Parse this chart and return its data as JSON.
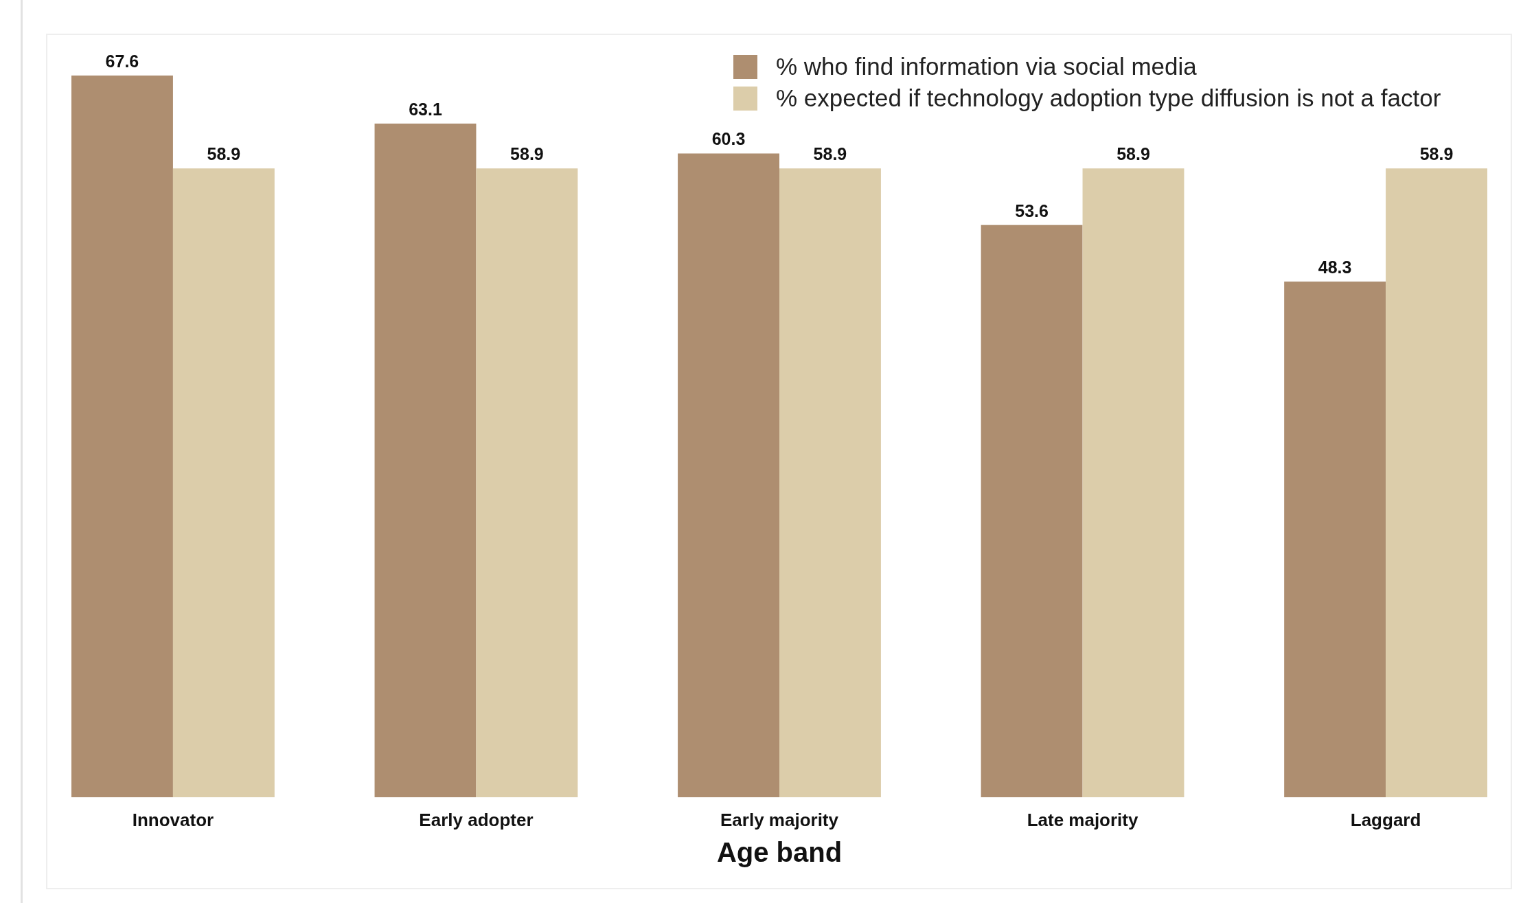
{
  "chart_data": {
    "type": "bar",
    "xlabel": "Age band",
    "categories": [
      "Innovator",
      "Early adopter",
      "Early majority",
      "Late majority",
      "Laggard"
    ],
    "series": [
      {
        "name": "% who find information via social media",
        "color": "#ae8e70",
        "values": [
          67.6,
          63.1,
          60.3,
          53.6,
          48.3
        ]
      },
      {
        "name": "% expected if technology adoption type diffusion is not a factor",
        "color": "#dccdaa",
        "values": [
          58.9,
          58.9,
          58.9,
          58.9,
          58.9
        ]
      }
    ],
    "data_labels": true,
    "legend": "top right"
  }
}
